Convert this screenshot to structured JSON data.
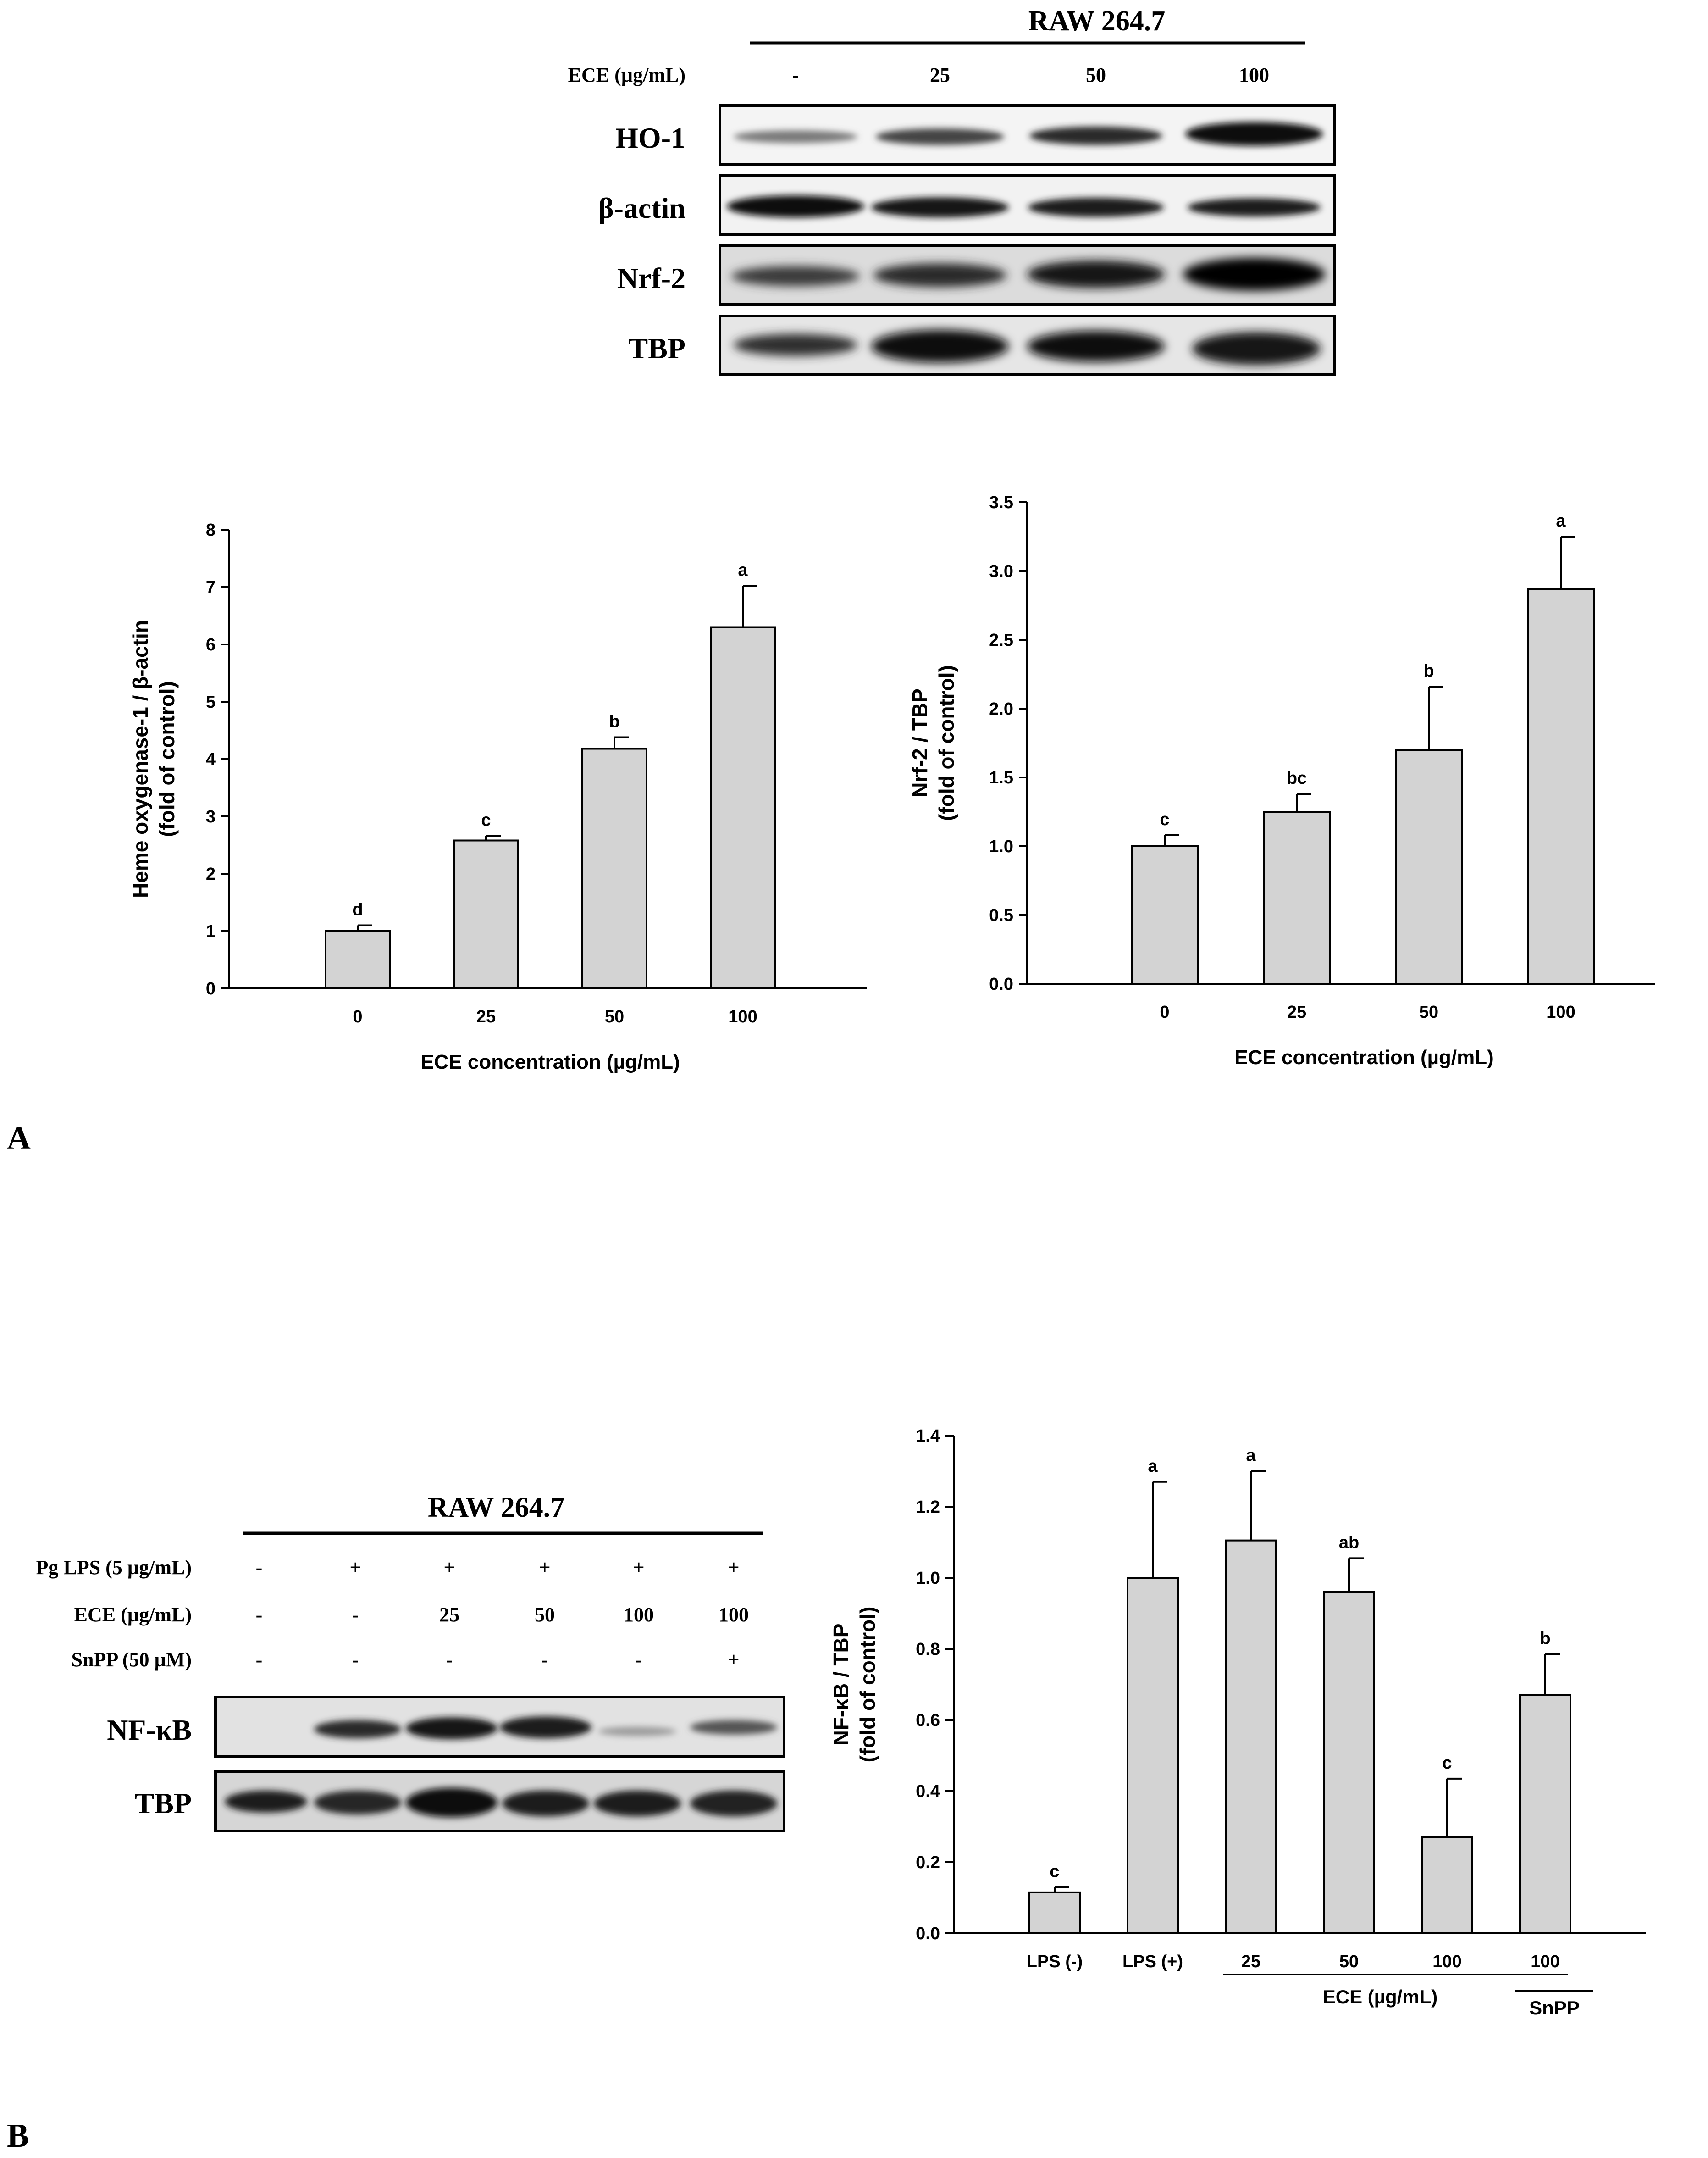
{
  "panel_labels": {
    "a": "A",
    "b": "B"
  },
  "blot_a": {
    "cell_line": "RAW 264.7",
    "treatment_label": "ECE (µg/mL)",
    "lanes": [
      "-",
      "25",
      "50",
      "100"
    ],
    "proteins": [
      "HO-1",
      "β-actin",
      "Nrf-2",
      "TBP"
    ]
  },
  "blot_b": {
    "cell_line": "RAW 264.7",
    "rows": [
      {
        "label": "Pg LPS (5 µg/mL)",
        "values": [
          "-",
          "+",
          "+",
          "+",
          "+",
          "+"
        ]
      },
      {
        "label": "ECE (µg/mL)",
        "values": [
          "-",
          "-",
          "25",
          "50",
          "100",
          "100"
        ]
      },
      {
        "label": "SnPP (50 µM)",
        "values": [
          "-",
          "-",
          "-",
          "-",
          "-",
          "+"
        ]
      }
    ],
    "proteins": [
      "NF-κB",
      "TBP"
    ]
  },
  "chart_data": [
    {
      "type": "bar",
      "categories": [
        "0",
        "25",
        "50",
        "100"
      ],
      "values": [
        1.0,
        2.58,
        4.18,
        6.3
      ],
      "errors": [
        0.1,
        0.08,
        0.2,
        0.72
      ],
      "letters": [
        "d",
        "c",
        "b",
        "a"
      ],
      "xlabel": "ECE concentration (µg/mL)",
      "ylabel": [
        "Heme oxygenase-1 / β-actin",
        "(fold of control)"
      ],
      "ylim": [
        0,
        8
      ],
      "yticks": [
        "0",
        "1",
        "2",
        "3",
        "4",
        "5",
        "6",
        "7",
        "8"
      ],
      "bar_color": "#d3d3d3"
    },
    {
      "type": "bar",
      "categories": [
        "0",
        "25",
        "50",
        "100"
      ],
      "values": [
        1.0,
        1.25,
        1.7,
        2.87
      ],
      "errors": [
        0.08,
        0.13,
        0.46,
        0.38
      ],
      "letters": [
        "c",
        "bc",
        "b",
        "a"
      ],
      "xlabel": "ECE concentration (µg/mL)",
      "ylabel": [
        "Nrf-2 / TBP",
        "(fold of control)"
      ],
      "ylim": [
        0,
        3.5
      ],
      "yticks": [
        "0.0",
        "0.5",
        "1.0",
        "1.5",
        "2.0",
        "2.5",
        "3.0",
        "3.5"
      ],
      "bar_color": "#d3d3d3"
    },
    {
      "type": "bar",
      "categories": [
        "LPS (-)",
        "LPS (+)",
        "25",
        "50",
        "100",
        "100"
      ],
      "values": [
        0.115,
        1.0,
        1.105,
        0.96,
        0.27,
        0.67
      ],
      "errors": [
        0.015,
        0.27,
        0.195,
        0.095,
        0.165,
        0.115
      ],
      "letters": [
        "c",
        "a",
        "a",
        "ab",
        "c",
        "b"
      ],
      "group_labels": {
        "ece": "ECE (µg/mL)",
        "snpp": "SnPP"
      },
      "ylabel": [
        "NF-κB / TBP",
        "(fold of control)"
      ],
      "ylim": [
        0,
        1.4
      ],
      "yticks": [
        "0.0",
        "0.2",
        "0.4",
        "0.6",
        "0.8",
        "1.0",
        "1.2",
        "1.4"
      ],
      "bar_color": "#d3d3d3"
    }
  ]
}
